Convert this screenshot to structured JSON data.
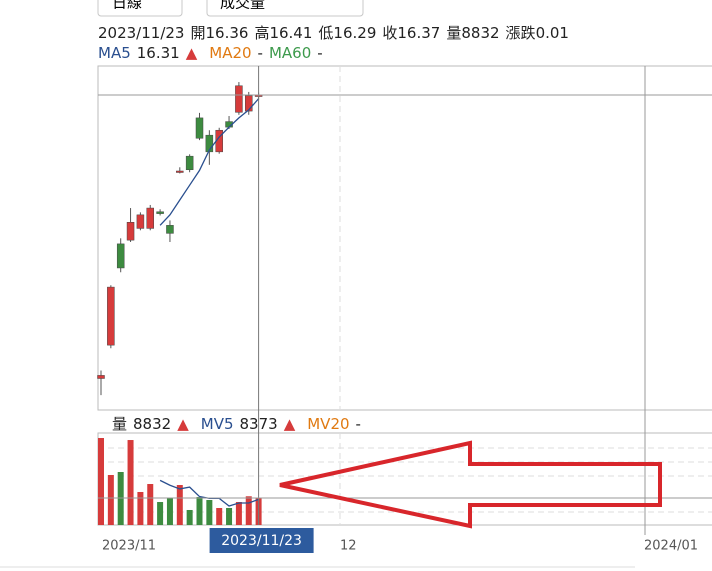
{
  "controls": [
    "日線",
    "成交量"
  ],
  "info": {
    "labels": [
      "開",
      "高",
      "低",
      "收",
      "量",
      "漲跌"
    ],
    "change": 0.01
  },
  "trend_symbol": "▲",
  "chart_data": {
    "type": "candlestick",
    "categories": [
      null,
      null,
      null,
      null,
      null,
      null,
      null,
      null,
      null,
      null,
      null,
      null,
      null,
      null,
      null,
      null,
      "2023/11/23"
    ],
    "open": [
      11.78,
      12.32,
      13.96,
      14.02,
      14.21,
      14.21,
      14.48,
      14.26,
      15.12,
      15.38,
      16.0,
      15.72,
      15.45,
      15.94,
      16.09,
      16.11,
      16.36
    ],
    "high": [
      11.91,
      13.29,
      14.05,
      14.54,
      14.47,
      14.59,
      14.52,
      14.34,
      15.2,
      15.41,
      16.08,
      15.8,
      15.84,
      16.03,
      16.58,
      16.42,
      16.41
    ],
    "low": [
      11.51,
      12.27,
      13.5,
      13.99,
      14.18,
      14.18,
      14.42,
      13.99,
      15.1,
      15.12,
      15.64,
      15.24,
      15.42,
      15.82,
      16.05,
      16.05,
      16.29
    ],
    "close": [
      11.83,
      13.26,
      13.57,
      14.31,
      14.43,
      14.54,
      14.45,
      14.13,
      15.14,
      15.16,
      15.67,
      15.45,
      15.8,
      15.85,
      16.52,
      16.36,
      16.37
    ],
    "ylim": [
      11.27,
      16.84
    ],
    "up_color": "#d63b3b",
    "down_color": "#3d8b40",
    "ma": [
      {
        "name": "MA5",
        "color": "#2a4f8f",
        "values": [
          null,
          null,
          null,
          null,
          null,
          null,
          14.26,
          14.43,
          14.67,
          14.91,
          15.15,
          15.48,
          15.69,
          15.85,
          16.0,
          16.13,
          16.31
        ]
      },
      {
        "name": "MA20",
        "color": "#e07a12",
        "display": "-"
      },
      {
        "name": "MA60",
        "color": "#3d9a4c",
        "display": "-"
      }
    ],
    "volume": {
      "label": "量",
      "values": [
        28460,
        16360,
        17340,
        27800,
        10800,
        13410,
        7520,
        8830,
        13080,
        4910,
        9160,
        8180,
        5560,
        5560,
        7520,
        9400,
        8832
      ],
      "ylim": [
        0,
        30100
      ],
      "mv": [
        {
          "name": "MV5",
          "color": "#2a4f8f",
          "values": [
            null,
            null,
            null,
            null,
            null,
            null,
            14600,
            13000,
            11800,
            12400,
            9300,
            8700,
            8700,
            6200,
            7200,
            7200,
            8373
          ]
        },
        {
          "name": "MV20",
          "color": "#e07a12",
          "display": "-"
        }
      ]
    },
    "x_axis_labels": [
      "2023/11",
      "12",
      "2024/01"
    ]
  }
}
